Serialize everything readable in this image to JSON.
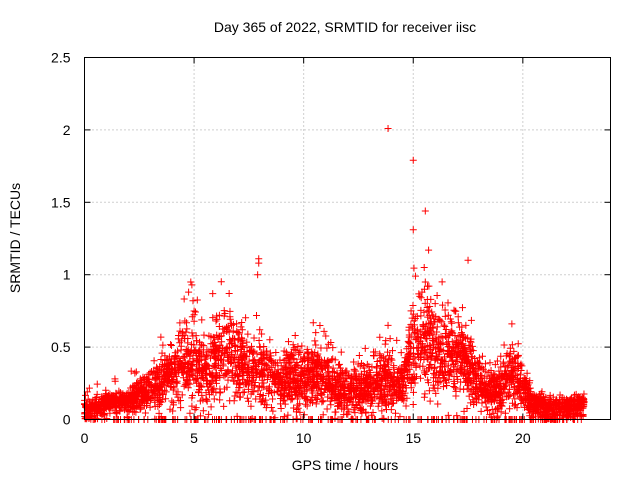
{
  "chart_data": {
    "type": "scatter",
    "title": "Day 365 of 2022, SRMTID for receiver iisc",
    "xlabel": "GPS time / hours",
    "ylabel": "SRMTID / TECUs",
    "xlim": [
      0,
      24
    ],
    "ylim": [
      0,
      2.5
    ],
    "xticks": [
      0,
      5,
      10,
      15,
      20
    ],
    "yticks": [
      0,
      0.5,
      1,
      1.5,
      2,
      2.5
    ],
    "xtick_labels": [
      "0",
      "5",
      "10",
      "15",
      "20"
    ],
    "ytick_labels": [
      "0",
      "0.5",
      "1",
      "1.5",
      "2",
      "2.5"
    ],
    "grid": true,
    "marker": "+",
    "color": "#ff0000",
    "series": [
      {
        "name": "SRMTID",
        "envelope": [
          [
            0.0,
            0.06,
            0.05
          ],
          [
            0.5,
            0.06,
            0.05
          ],
          [
            1.0,
            0.12,
            0.03
          ],
          [
            1.5,
            0.13,
            0.03
          ],
          [
            2.0,
            0.14,
            0.04
          ],
          [
            2.5,
            0.17,
            0.05
          ],
          [
            3.0,
            0.22,
            0.06
          ],
          [
            3.5,
            0.26,
            0.08
          ],
          [
            4.0,
            0.3,
            0.1
          ],
          [
            4.5,
            0.38,
            0.14
          ],
          [
            5.0,
            0.4,
            0.15
          ],
          [
            5.5,
            0.33,
            0.12
          ],
          [
            6.0,
            0.42,
            0.14
          ],
          [
            6.5,
            0.46,
            0.14
          ],
          [
            7.0,
            0.44,
            0.14
          ],
          [
            7.5,
            0.36,
            0.12
          ],
          [
            8.0,
            0.32,
            0.12
          ],
          [
            8.5,
            0.3,
            0.1
          ],
          [
            9.0,
            0.26,
            0.1
          ],
          [
            9.5,
            0.3,
            0.12
          ],
          [
            10.0,
            0.26,
            0.1
          ],
          [
            10.5,
            0.3,
            0.11
          ],
          [
            11.0,
            0.28,
            0.1
          ],
          [
            11.5,
            0.22,
            0.08
          ],
          [
            12.0,
            0.2,
            0.08
          ],
          [
            12.5,
            0.22,
            0.08
          ],
          [
            13.0,
            0.22,
            0.08
          ],
          [
            13.5,
            0.25,
            0.09
          ],
          [
            14.0,
            0.26,
            0.09
          ],
          [
            14.5,
            0.24,
            0.08
          ],
          [
            15.0,
            0.5,
            0.16
          ],
          [
            15.5,
            0.6,
            0.18
          ],
          [
            16.0,
            0.45,
            0.15
          ],
          [
            16.5,
            0.4,
            0.14
          ],
          [
            17.0,
            0.46,
            0.15
          ],
          [
            17.5,
            0.36,
            0.12
          ],
          [
            18.0,
            0.26,
            0.09
          ],
          [
            18.5,
            0.2,
            0.08
          ],
          [
            19.0,
            0.22,
            0.08
          ],
          [
            19.5,
            0.34,
            0.12
          ],
          [
            20.0,
            0.2,
            0.08
          ],
          [
            20.5,
            0.1,
            0.04
          ],
          [
            21.0,
            0.09,
            0.04
          ],
          [
            21.5,
            0.09,
            0.04
          ],
          [
            22.0,
            0.08,
            0.04
          ],
          [
            22.5,
            0.09,
            0.04
          ],
          [
            22.8,
            0.12,
            0.03
          ]
        ],
        "x_range": [
          0,
          22.8
        ],
        "points_per_hour": 170,
        "outliers": [
          [
            13.85,
            2.01
          ],
          [
            15.0,
            1.79
          ],
          [
            15.55,
            1.44
          ],
          [
            15.0,
            1.31
          ],
          [
            15.7,
            1.17
          ],
          [
            15.5,
            1.05
          ],
          [
            7.95,
            1.11
          ],
          [
            7.95,
            1.08
          ],
          [
            17.5,
            1.1
          ],
          [
            7.9,
            1.0
          ],
          [
            4.85,
            0.95
          ],
          [
            4.9,
            0.93
          ],
          [
            4.75,
            0.88
          ],
          [
            6.6,
            0.87
          ],
          [
            4.95,
            0.82
          ],
          [
            15.1,
            0.99
          ],
          [
            15.55,
            0.95
          ],
          [
            15.65,
            0.92
          ],
          [
            15.4,
            0.88
          ],
          [
            15.3,
            0.85
          ],
          [
            15.8,
            0.83
          ],
          [
            15.75,
            0.78
          ],
          [
            14.95,
            0.7
          ],
          [
            13.85,
            0.65
          ],
          [
            16.0,
            0.8
          ],
          [
            17.4,
            0.65
          ],
          [
            19.5,
            0.66
          ],
          [
            10.55,
            0.6
          ],
          [
            6.0,
            0.68
          ],
          [
            7.2,
            0.62
          ],
          [
            16.6,
            0.72
          ],
          [
            17.2,
            0.6
          ],
          [
            16.9,
            0.58
          ],
          [
            15.2,
            0.62
          ],
          [
            14.9,
            0.75
          ]
        ]
      }
    ]
  }
}
